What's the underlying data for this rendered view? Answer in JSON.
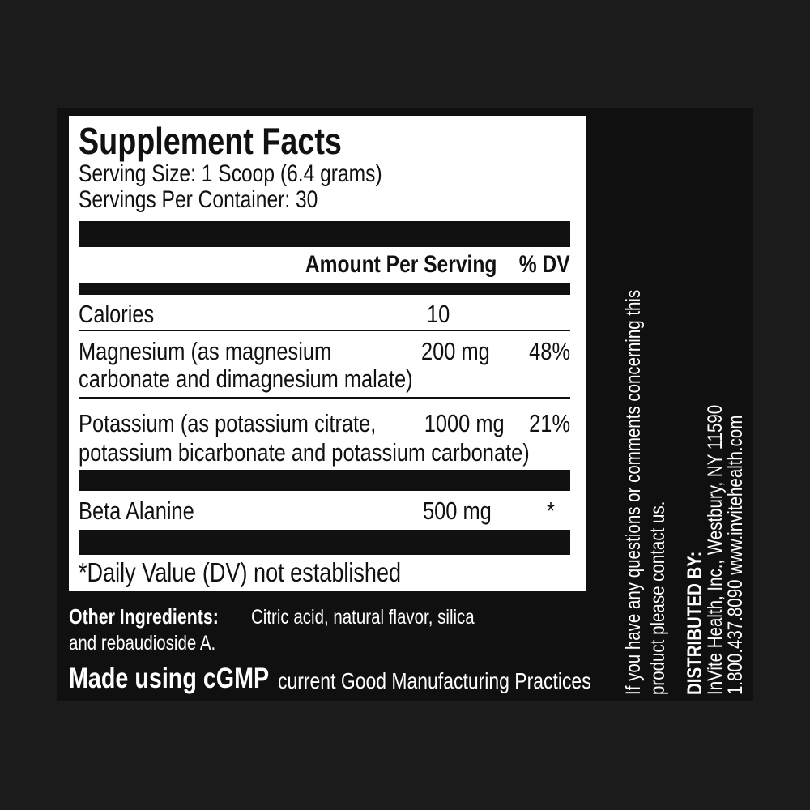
{
  "label": {
    "title": "Supplement Facts",
    "serving_size": "Serving Size: 1 Scoop (6.4 grams)",
    "servings_per_container": "Servings Per Container: 30",
    "header_amount": "Amount Per Serving",
    "header_dv": "% DV",
    "rows": [
      {
        "name": "Calories",
        "amount": "10",
        "dv": ""
      },
      {
        "name": "Magnesium (as magnesium",
        "name2": "carbonate and dimagnesium malate)",
        "amount": "200 mg",
        "dv": "48%"
      },
      {
        "name": "Potassium (as potassium citrate,",
        "name2": "potassium bicarbonate and potassium carbonate)",
        "amount": "1000 mg",
        "dv": "21%"
      },
      {
        "name": "Beta Alanine",
        "amount": "500 mg",
        "dv": "*"
      }
    ],
    "footnote": "*Daily Value (DV) not established"
  },
  "other_ingredients": {
    "label": "Other Ingredients:",
    "text1": "Citric acid, natural flavor, silica",
    "text2": "and rebaudioside A."
  },
  "cgmp": {
    "bold": "Made using cGMP",
    "text": "current Good Manufacturing Practices"
  },
  "contact": {
    "line1": "If you have any questions or comments concerning this",
    "line2": "product please contact us."
  },
  "distributor": {
    "heading": "DISTRIBUTED BY:",
    "line1": "InVite Health, Inc., Westbury, NY 11590",
    "line2": "1.800.437.8090  www.invitehealth.com"
  }
}
